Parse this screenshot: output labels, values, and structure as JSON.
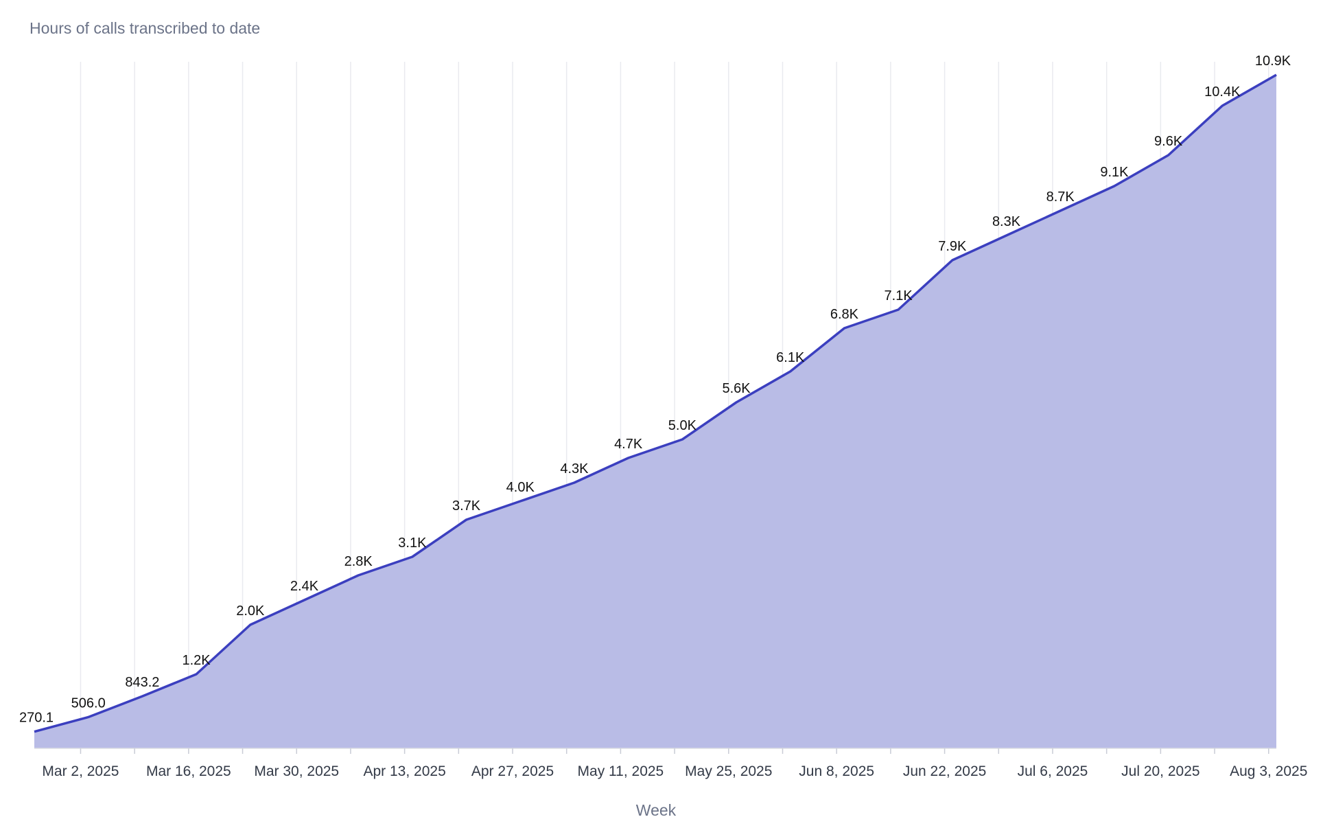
{
  "chart_data": {
    "type": "area",
    "title": "Hours of calls transcribed to date",
    "xlabel": "Week",
    "ylabel": "",
    "x": [
      "Feb 24, 2025",
      "Mar 3, 2025",
      "Mar 10, 2025",
      "Mar 17, 2025",
      "Mar 24, 2025",
      "Mar 31, 2025",
      "Apr 7, 2025",
      "Apr 14, 2025",
      "Apr 21, 2025",
      "Apr 28, 2025",
      "May 5, 2025",
      "May 12, 2025",
      "May 19, 2025",
      "May 26, 2025",
      "Jun 2, 2025",
      "Jun 9, 2025",
      "Jun 16, 2025",
      "Jun 23, 2025",
      "Jun 30, 2025",
      "Jul 7, 2025",
      "Jul 14, 2025",
      "Jul 21, 2025",
      "Jul 28, 2025",
      "Aug 4, 2025"
    ],
    "values": [
      270.1,
      506.0,
      843.2,
      1200,
      2000,
      2400,
      2800,
      3100,
      3700,
      4000,
      4300,
      4700,
      5000,
      5600,
      6100,
      6800,
      7100,
      7900,
      8300,
      8700,
      9100,
      9600,
      10400,
      10900
    ],
    "data_labels": [
      "270.1",
      "506.0",
      "843.2",
      "1.2K",
      "2.0K",
      "2.4K",
      "2.8K",
      "3.1K",
      "3.7K",
      "4.0K",
      "4.3K",
      "4.7K",
      "5.0K",
      "5.6K",
      "6.1K",
      "6.8K",
      "7.1K",
      "7.9K",
      "8.3K",
      "8.7K",
      "9.1K",
      "9.6K",
      "10.4K",
      "10.9K"
    ],
    "x_tick_labels": [
      "Mar 2, 2025",
      "Mar 16, 2025",
      "Mar 30, 2025",
      "Apr 13, 2025",
      "Apr 27, 2025",
      "May 11, 2025",
      "May 25, 2025",
      "Jun 8, 2025",
      "Jun 22, 2025",
      "Jul 6, 2025",
      "Jul 20, 2025",
      "Aug 3, 2025"
    ],
    "x_tick_dates": [
      "Mar 2, 2025",
      "Mar 16, 2025",
      "Mar 30, 2025",
      "Apr 13, 2025",
      "Apr 27, 2025",
      "May 11, 2025",
      "May 25, 2025",
      "Jun 8, 2025",
      "Jun 22, 2025",
      "Jul 6, 2025",
      "Jul 20, 2025",
      "Aug 3, 2025"
    ],
    "xlim": [
      "Feb 24, 2025",
      "Aug 4, 2025"
    ],
    "ylim": [
      0,
      11000
    ],
    "grid": {
      "vertical": true,
      "horizontal": false
    },
    "legend": "none",
    "colors": {
      "line": "#3b3fbf",
      "fill": "#b9bce6",
      "grid": "#e9eaef",
      "title": "#6b7388"
    }
  }
}
